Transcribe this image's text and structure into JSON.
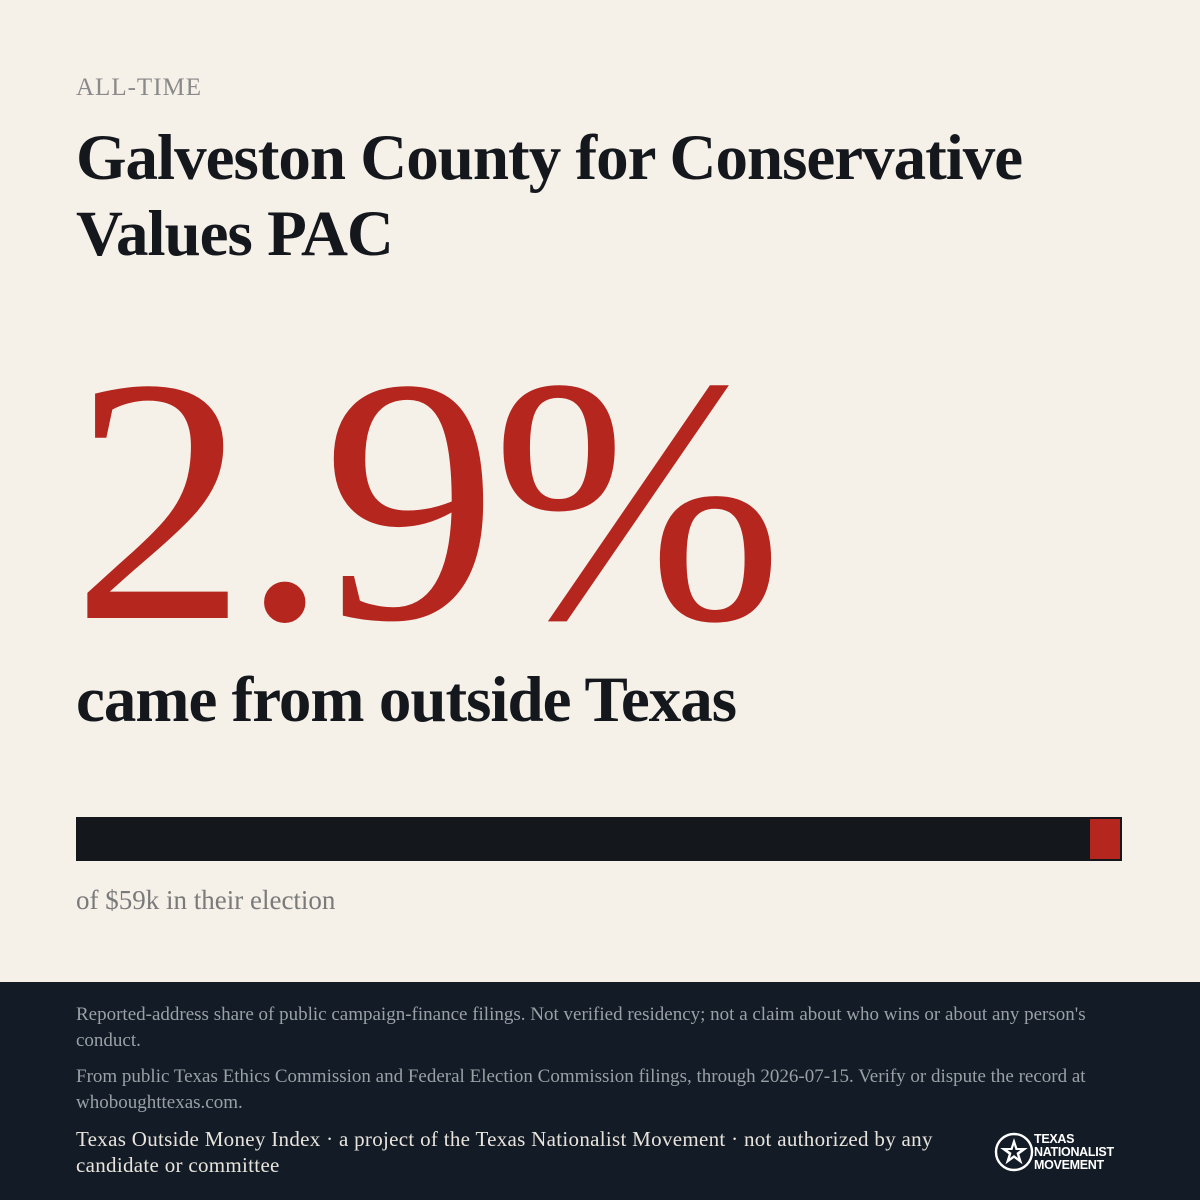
{
  "header": {
    "eyebrow": "ALL-TIME",
    "title": "Galveston County for Conservative Values PAC"
  },
  "stat": {
    "value": "2.9%",
    "caption": "came from outside Texas",
    "share_fraction": 0.029,
    "bar_caption": "of $59k in their election"
  },
  "footer": {
    "disclaimer": "Reported-address share of public campaign-finance filings. Not verified residency; not a claim about who wins or about any person's conduct.",
    "source": "From public Texas Ethics Commission and Federal Election Commission filings, through 2026-07-15. Verify or dispute the record at whoboughttexas.com.",
    "credit": "Texas Outside Money Index · a project of the Texas Nationalist Movement · not authorized by any candidate or committee",
    "logo_lines": [
      "TEXAS",
      "NATIONALIST",
      "MOVEMENT"
    ]
  },
  "colors": {
    "background": "#f5f0e8",
    "accent": "#b5261e",
    "ink": "#14181d",
    "footer_background": "#121b26"
  }
}
